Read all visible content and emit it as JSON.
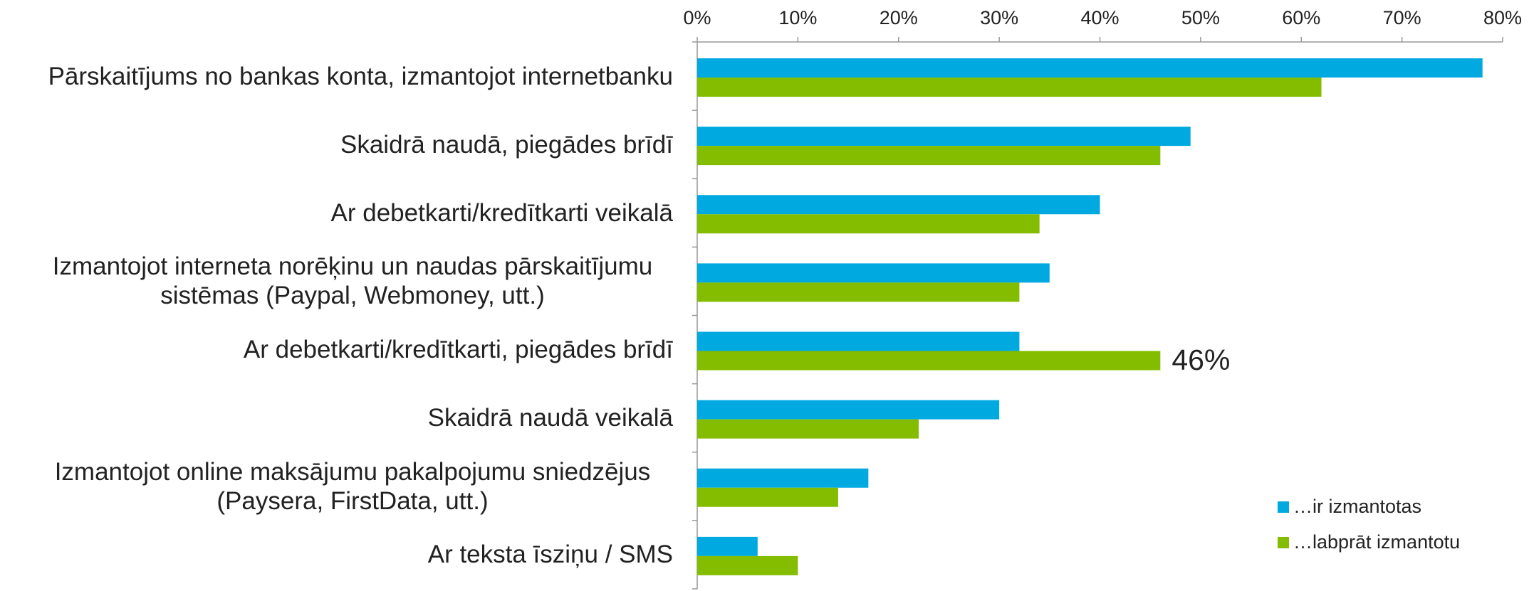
{
  "chart_data": {
    "type": "hbar",
    "categories": [
      "Pārskaitījums no bankas konta, izmantojot internetbanku",
      "Skaidrā naudā, piegādes brīdī",
      "Ar debetkarti/kredītkarti veikalā",
      "Izmantojot interneta norēķinu un naudas pārskaitījumu sistēmas (Paypal, Webmoney, utt.)",
      "Ar debetkarti/kredītkarti, piegādes brīdī",
      "Skaidrā naudā veikalā",
      "Izmantojot online maksājumu pakalpojumu sniedzējus (Paysera, FirstData, utt.)",
      "Ar teksta īsziņu / SMS"
    ],
    "series": [
      {
        "name": "…ir izmantotas",
        "color": "#00a9e0",
        "values": [
          78,
          49,
          40,
          35,
          32,
          30,
          17,
          6
        ]
      },
      {
        "name": "…labprāt izmantotu",
        "color": "#84bd00",
        "values": [
          62,
          46,
          34,
          32,
          46,
          22,
          14,
          10
        ],
        "value_labels": [
          null,
          null,
          null,
          null,
          "46%",
          null,
          null,
          null
        ]
      }
    ],
    "xlim": [
      0,
      80
    ],
    "xticks": [
      {
        "value": 0,
        "label": "0%"
      },
      {
        "value": 10,
        "label": "10%"
      },
      {
        "value": 20,
        "label": "20%"
      },
      {
        "value": 30,
        "label": "30%"
      },
      {
        "value": 40,
        "label": "40%"
      },
      {
        "value": 50,
        "label": "50%"
      },
      {
        "value": 60,
        "label": "60%"
      },
      {
        "value": 70,
        "label": "70%"
      },
      {
        "value": 80,
        "label": "80%"
      }
    ],
    "grid": false,
    "legend": "bottom-right"
  }
}
